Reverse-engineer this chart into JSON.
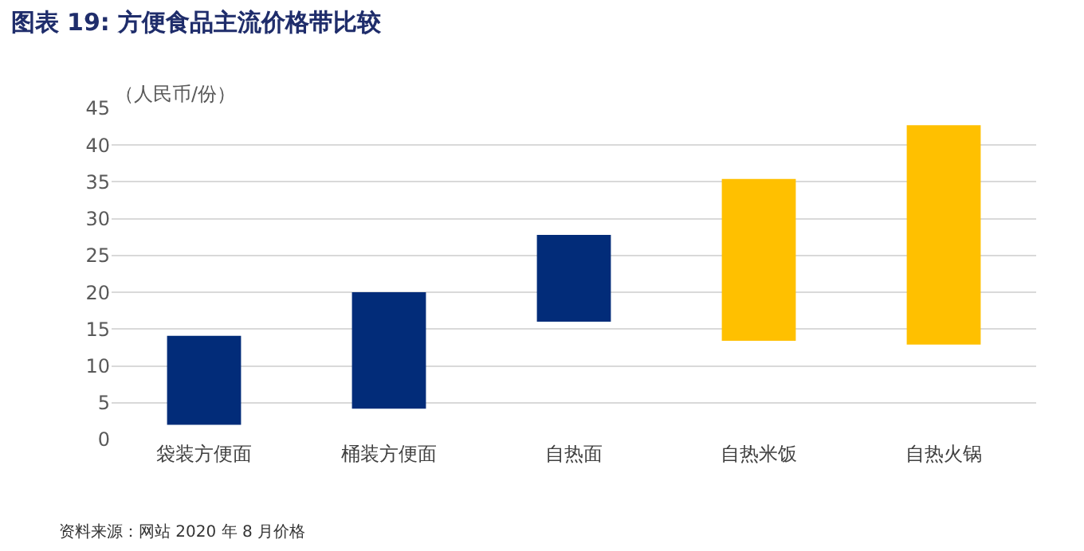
{
  "chart_data": {
    "type": "bar",
    "title": "图表 19: 方便食品主流价格带比较",
    "ylabel": "（人民币/份）",
    "categories": [
      "袋装方便面",
      "桶装方便面",
      "自热面",
      "自热米饭",
      "自热火锅"
    ],
    "base": [
      2,
      4.2,
      16,
      13.4,
      12.9
    ],
    "values": [
      12.1,
      15.8,
      11.8,
      22,
      29.8
    ],
    "colors": [
      "#022c79",
      "#022c79",
      "#022c79",
      "#ffc000",
      "#ffc000"
    ],
    "ylim": [
      0,
      45
    ],
    "yticks": [
      0,
      5,
      10,
      15,
      20,
      25,
      30,
      35,
      40,
      45
    ],
    "grid": "y",
    "annotations": [
      "资料来源：网站 2020 年 8 月价格"
    ]
  }
}
